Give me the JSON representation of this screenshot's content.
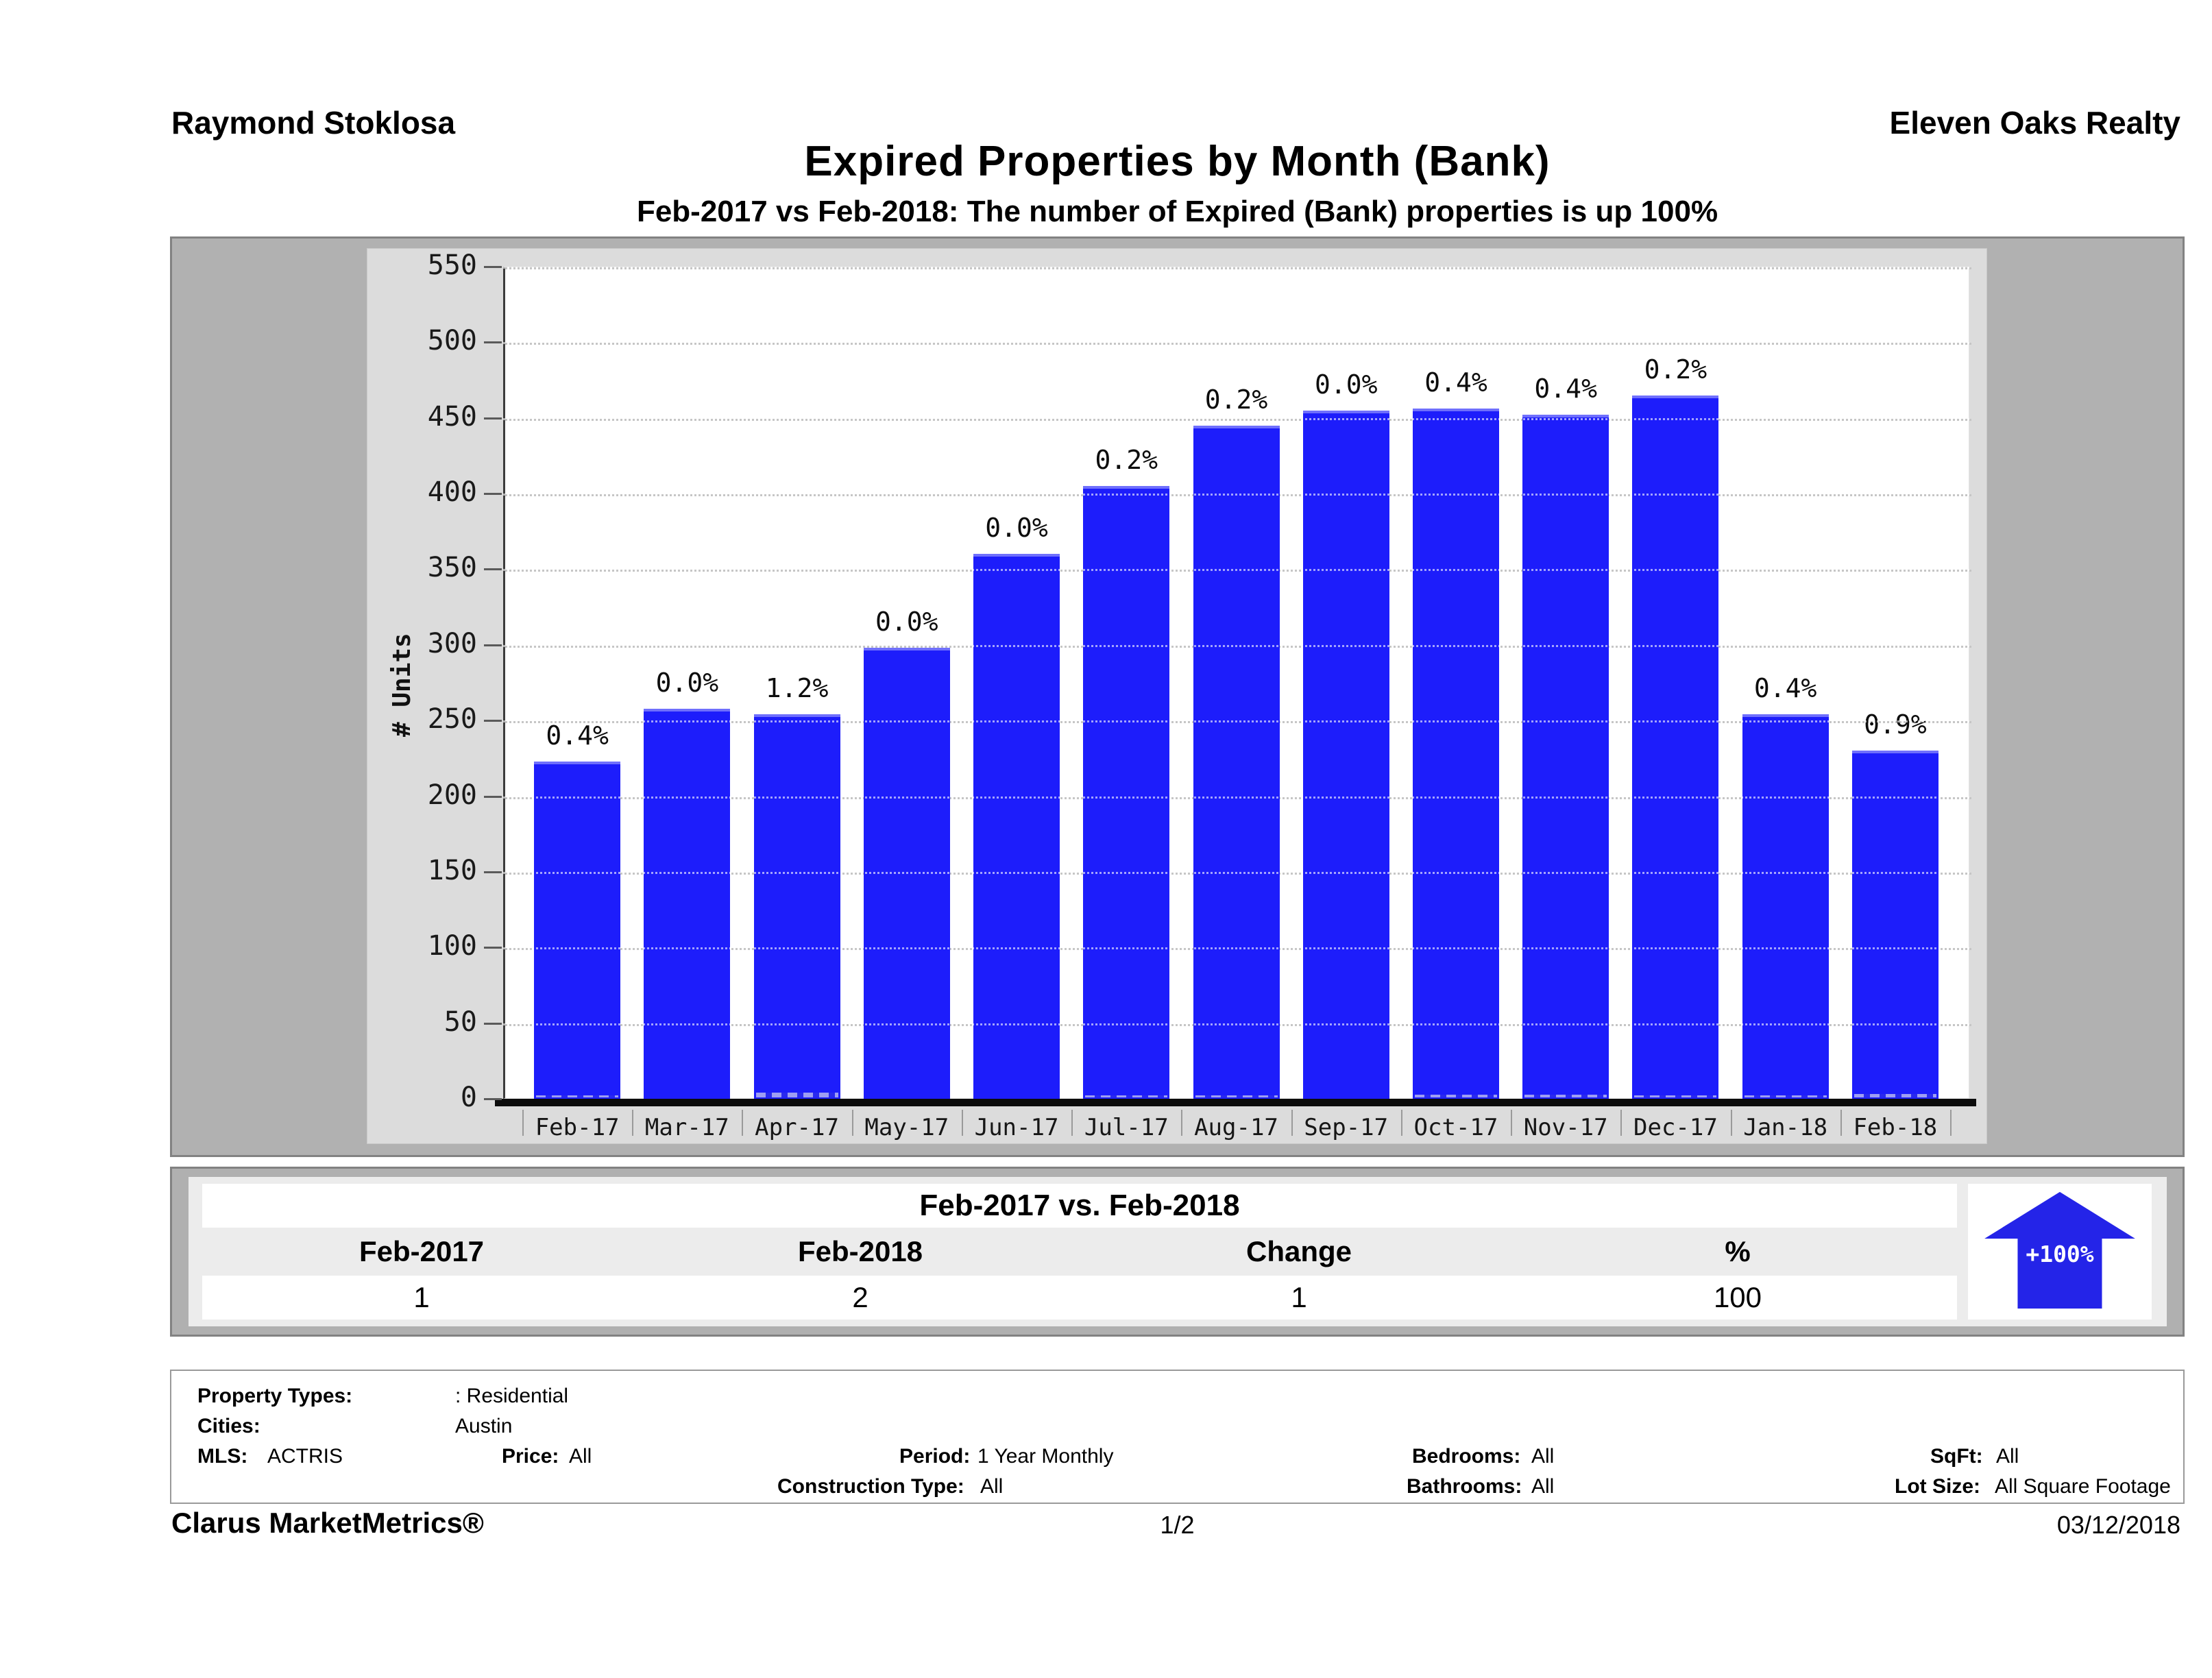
{
  "header": {
    "agent": "Raymond Stoklosa",
    "company": "Eleven Oaks Realty",
    "title": "Expired Properties by Month (Bank)",
    "subtitle": "Feb-2017 vs Feb-2018: The number of Expired (Bank)  properties is up 100%"
  },
  "chart_data": {
    "type": "bar",
    "title": "Expired Properties by Month (Bank)",
    "xlabel": "",
    "ylabel": "# Units",
    "ylim": [
      0,
      550
    ],
    "ytick_interval": 50,
    "grid": "horizontal-dotted",
    "legend": "none",
    "bar_color": "#1d1dfb",
    "categories": [
      "Feb-17",
      "Mar-17",
      "Apr-17",
      "May-17",
      "Jun-17",
      "Jul-17",
      "Aug-17",
      "Sep-17",
      "Oct-17",
      "Nov-17",
      "Dec-17",
      "Jan-18",
      "Feb-18"
    ],
    "values": [
      223,
      258,
      254,
      298,
      360,
      405,
      445,
      455,
      456,
      452,
      465,
      254,
      230
    ],
    "bar_labels": [
      "0.4%",
      "0.0%",
      "1.2%",
      "0.0%",
      "0.0%",
      "0.2%",
      "0.2%",
      "0.0%",
      "0.4%",
      "0.4%",
      "0.2%",
      "0.4%",
      "0.9%"
    ],
    "bank_share_pct": [
      0.4,
      0.0,
      1.2,
      0.0,
      0.0,
      0.2,
      0.2,
      0.0,
      0.4,
      0.4,
      0.2,
      0.4,
      0.9
    ]
  },
  "comparison": {
    "title": "Feb-2017 vs. Feb-2018",
    "columns": [
      "Feb-2017",
      "Feb-2018",
      "Change",
      "%"
    ],
    "values": [
      "1",
      "2",
      "1",
      "100"
    ],
    "badge": "+100%"
  },
  "filters": {
    "property_types_label": "Property Types:",
    "property_types_value": ": Residential",
    "cities_label": "Cities:",
    "cities_value": "Austin",
    "mls_label": "MLS:",
    "mls_value": "ACTRIS",
    "price_label": "Price:",
    "price_value": "All",
    "period_label": "Period:",
    "period_value": "1 Year Monthly",
    "bedrooms_label": "Bedrooms:",
    "bedrooms_value": "All",
    "sqft_label": "SqFt:",
    "sqft_value": "All",
    "construction_label": "Construction Type:",
    "construction_value": "All",
    "bathrooms_label": "Bathrooms:",
    "bathrooms_value": "All",
    "lot_size_label": "Lot Size:",
    "lot_size_value": "All Square Footage"
  },
  "footer": {
    "brand": "Clarus MarketMetrics®",
    "page": "1/2",
    "date": "03/12/2018"
  }
}
